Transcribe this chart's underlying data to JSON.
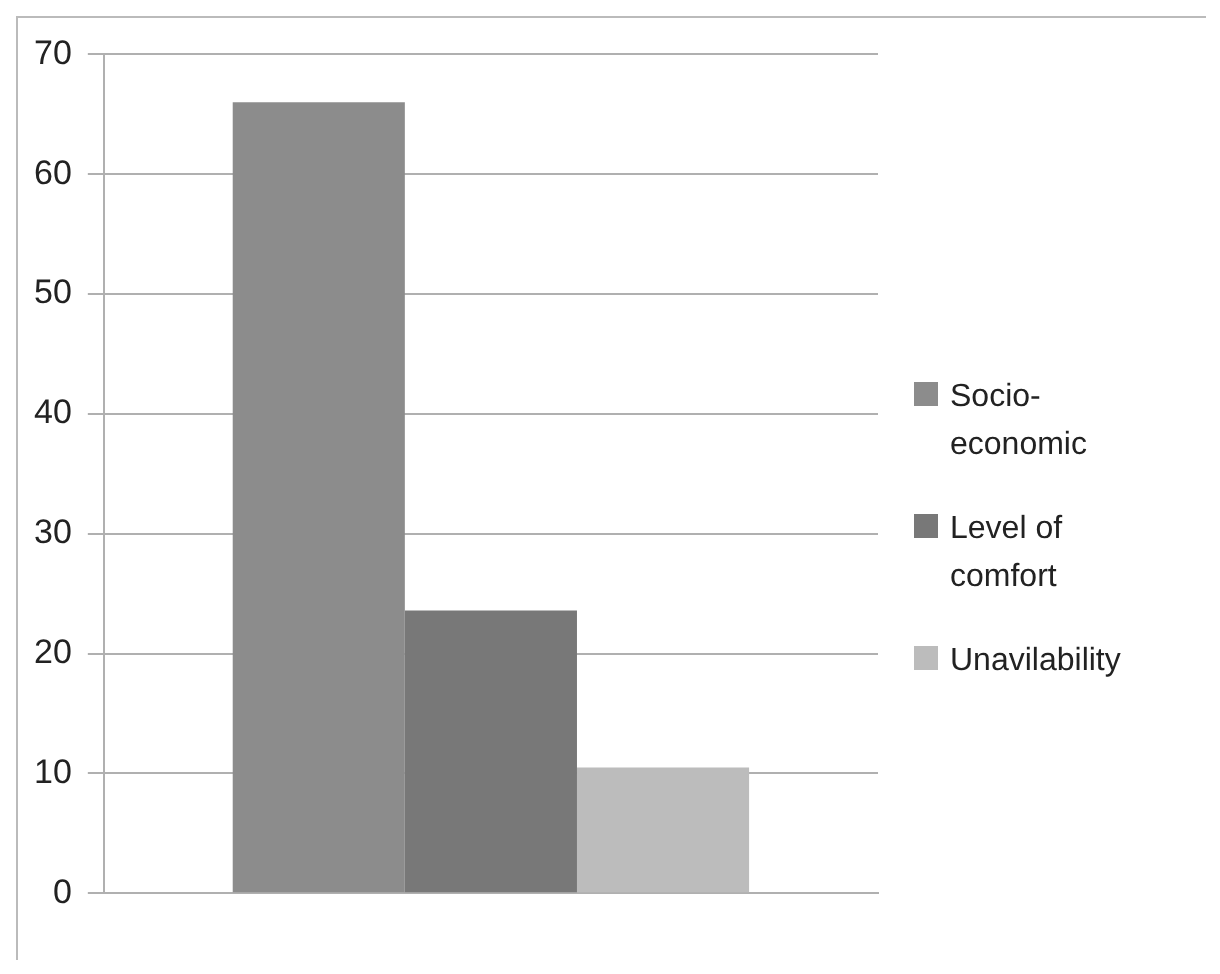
{
  "chart_data": {
    "type": "bar",
    "categories": [
      null
    ],
    "series": [
      {
        "name": "Socio-economic",
        "color": "#8c8c8c",
        "values": [
          66
        ]
      },
      {
        "name": "Level of comfort",
        "color": "#787878",
        "values": [
          23.6
        ]
      },
      {
        "name": "Unavilability",
        "color": "#bcbcbc",
        "values": [
          10.5
        ]
      }
    ],
    "ylim": [
      0,
      70
    ],
    "yticks": [
      0,
      10,
      20,
      30,
      40,
      50,
      60,
      70
    ],
    "grid": "y",
    "legend": "right"
  }
}
